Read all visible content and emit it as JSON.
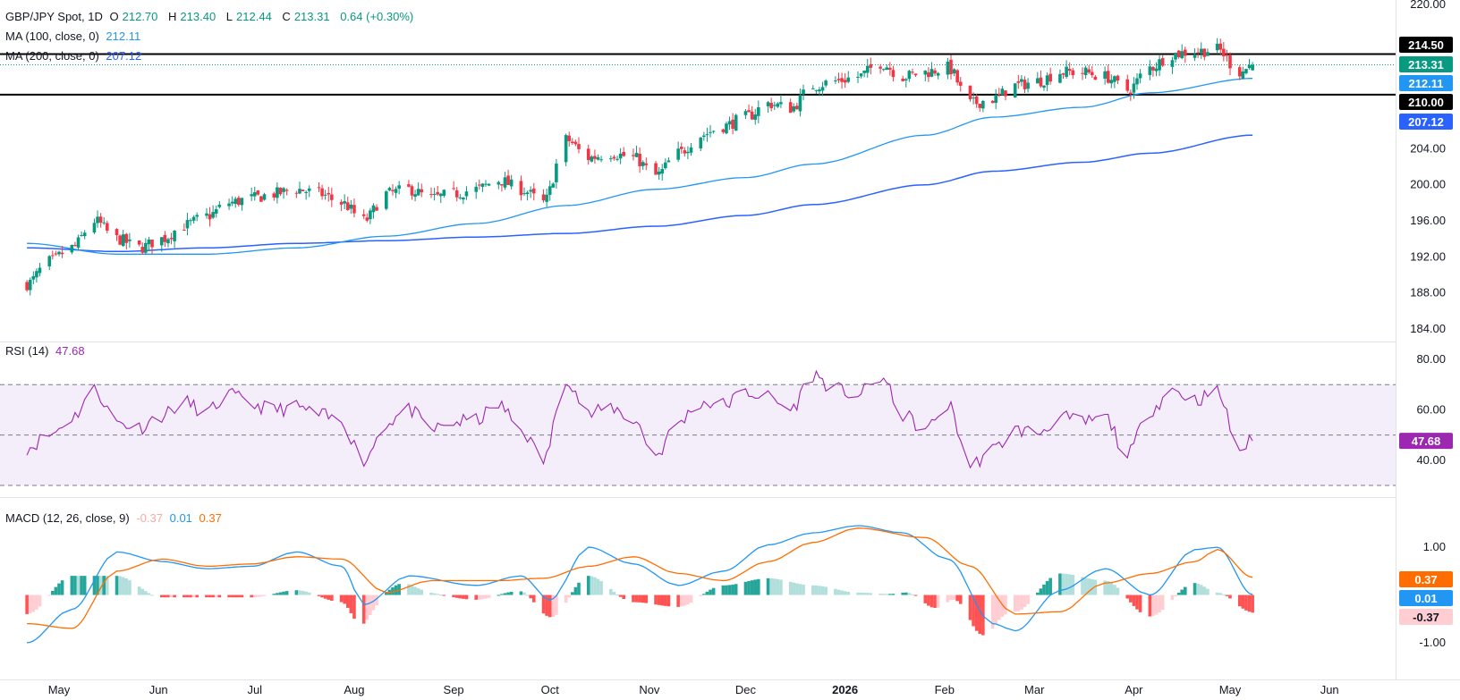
{
  "header": {
    "symbol": "GBP/JPY Spot, 1D",
    "open_label": "O",
    "open": "212.70",
    "high_label": "H",
    "high": "213.40",
    "low_label": "L",
    "low": "212.44",
    "close_label": "C",
    "close": "213.31",
    "change": "0.64 (+0.30%)"
  },
  "indicators": {
    "ma100_label": "MA (100, close, 0)",
    "ma100_value": "212.11",
    "ma200_label": "MA (200, close, 0)",
    "ma200_value": "207.12",
    "rsi_label": "RSI (14)",
    "rsi_value": "47.68",
    "macd_label": "MACD (12, 26, close, 9)",
    "macd_hist_value": "-0.37",
    "macd_line_value": "0.01",
    "macd_signal_value": "0.37"
  },
  "colors": {
    "up": "#089981",
    "down": "#f23645",
    "ma100": "#2196f3",
    "ma200": "#2962ff",
    "rsi": "#9c27b0",
    "rsi_band": "#f3eefa",
    "macd": "#2196f3",
    "signal": "#ff6d00",
    "hist_up_strong": "#26a69a",
    "hist_up_weak": "#b2dfdb",
    "hist_down_strong": "#ff5252",
    "hist_down_weak": "#ffcdd2"
  },
  "chart_data": [
    {
      "type": "candlestick",
      "title": "GBP/JPY Spot, 1D",
      "x_labels": [
        "May",
        "Jun",
        "Jul",
        "Aug",
        "Sep",
        "Oct",
        "Nov",
        "Dec",
        "2026",
        "Feb",
        "Mar",
        "Apr",
        "May",
        "Jun"
      ],
      "y_ticks": [
        "220.00",
        "204.00",
        "200.00",
        "196.00",
        "192.00",
        "188.00",
        "184.00"
      ],
      "ylim": [
        184,
        220
      ],
      "horizontal_levels": [
        214.5,
        210.0
      ],
      "last_price": 213.31,
      "price_badges": [
        {
          "label": "214.50",
          "value": 214.5,
          "kind": "level"
        },
        {
          "label": "213.31",
          "value": 213.31,
          "kind": "last"
        },
        {
          "label": "212.11",
          "value": 212.11,
          "kind": "ma100"
        },
        {
          "label": "210.00",
          "value": 210.0,
          "kind": "level"
        },
        {
          "label": "207.12",
          "value": 207.12,
          "kind": "ma200"
        }
      ],
      "close_anchors": [
        [
          "2025-04-21",
          189.0
        ],
        [
          "2025-04-28",
          191.5
        ],
        [
          "2025-05-05",
          193.0
        ],
        [
          "2025-05-12",
          196.0
        ],
        [
          "2025-05-19",
          194.0
        ],
        [
          "2025-05-26",
          193.0
        ],
        [
          "2025-06-02",
          194.0
        ],
        [
          "2025-06-09",
          195.5
        ],
        [
          "2025-06-16",
          196.5
        ],
        [
          "2025-06-23",
          198.0
        ],
        [
          "2025-06-30",
          198.5
        ],
        [
          "2025-07-07",
          199.0
        ],
        [
          "2025-07-14",
          199.5
        ],
        [
          "2025-07-21",
          199.0
        ],
        [
          "2025-07-28",
          198.0
        ],
        [
          "2025-08-04",
          196.0
        ],
        [
          "2025-08-11",
          199.0
        ],
        [
          "2025-08-18",
          199.5
        ],
        [
          "2025-08-25",
          198.5
        ],
        [
          "2025-09-01",
          199.0
        ],
        [
          "2025-09-08",
          199.5
        ],
        [
          "2025-09-15",
          200.5
        ],
        [
          "2025-09-22",
          199.5
        ],
        [
          "2025-09-29",
          198.0
        ],
        [
          "2025-10-06",
          205.0
        ],
        [
          "2025-10-13",
          203.0
        ],
        [
          "2025-10-20",
          203.5
        ],
        [
          "2025-10-27",
          203.0
        ],
        [
          "2025-11-03",
          201.0
        ],
        [
          "2025-11-10",
          203.5
        ],
        [
          "2025-11-17",
          205.5
        ],
        [
          "2025-11-24",
          206.5
        ],
        [
          "2025-12-01",
          207.5
        ],
        [
          "2025-12-08",
          209.0
        ],
        [
          "2025-12-15",
          208.5
        ],
        [
          "2025-12-22",
          211.0
        ],
        [
          "2025-12-29",
          211.5
        ],
        [
          "2026-01-05",
          212.0
        ],
        [
          "2026-01-12",
          213.5
        ],
        [
          "2026-01-19",
          212.0
        ],
        [
          "2026-01-26",
          212.5
        ],
        [
          "2026-02-02",
          213.0
        ],
        [
          "2026-02-09",
          209.0
        ],
        [
          "2026-02-16",
          209.5
        ],
        [
          "2026-02-23",
          211.0
        ],
        [
          "2026-03-02",
          211.5
        ],
        [
          "2026-03-09",
          212.5
        ],
        [
          "2026-03-16",
          212.5
        ],
        [
          "2026-03-23",
          212.0
        ],
        [
          "2026-03-30",
          210.5
        ],
        [
          "2026-04-06",
          213.0
        ],
        [
          "2026-04-13",
          214.5
        ],
        [
          "2026-04-20",
          214.8
        ],
        [
          "2026-04-27",
          215.0
        ],
        [
          "2026-05-04",
          212.5
        ],
        [
          "2026-05-08",
          213.31
        ]
      ],
      "ma100_anchors": [
        [
          "2025-04-21",
          193.5
        ],
        [
          "2025-05-19",
          192.3
        ],
        [
          "2025-06-16",
          192.3
        ],
        [
          "2025-07-14",
          193.0
        ],
        [
          "2025-08-11",
          194.3
        ],
        [
          "2025-09-08",
          195.7
        ],
        [
          "2025-10-06",
          197.7
        ],
        [
          "2025-11-03",
          199.5
        ],
        [
          "2025-12-01",
          200.8
        ],
        [
          "2025-12-22",
          202.3
        ],
        [
          "2026-01-26",
          205.5
        ],
        [
          "2026-02-16",
          207.5
        ],
        [
          "2026-03-16",
          208.6
        ],
        [
          "2026-04-06",
          210.2
        ],
        [
          "2026-05-08",
          211.8
        ]
      ],
      "ma200_anchors": [
        [
          "2025-04-21",
          193.0
        ],
        [
          "2025-05-19",
          192.6
        ],
        [
          "2025-06-16",
          193.0
        ],
        [
          "2025-07-14",
          193.5
        ],
        [
          "2025-08-11",
          193.8
        ],
        [
          "2025-09-08",
          194.2
        ],
        [
          "2025-10-06",
          194.6
        ],
        [
          "2025-11-03",
          195.4
        ],
        [
          "2025-12-01",
          196.6
        ],
        [
          "2025-12-22",
          197.8
        ],
        [
          "2026-01-26",
          200.0
        ],
        [
          "2026-02-16",
          201.5
        ],
        [
          "2026-03-16",
          202.5
        ],
        [
          "2026-04-06",
          203.5
        ],
        [
          "2026-05-08",
          205.5
        ]
      ]
    },
    {
      "type": "line",
      "title": "RSI (14)",
      "y_ticks": [
        "80.00",
        "60.00",
        "40.00"
      ],
      "ylim": [
        30,
        80
      ],
      "levels": [
        70,
        50,
        30
      ],
      "last_value": 47.68,
      "anchors": [
        [
          "2025-04-21",
          45
        ],
        [
          "2025-04-28",
          50
        ],
        [
          "2025-05-05",
          57
        ],
        [
          "2025-05-12",
          68
        ],
        [
          "2025-05-19",
          55
        ],
        [
          "2025-05-26",
          53
        ],
        [
          "2025-06-02",
          58
        ],
        [
          "2025-06-09",
          63
        ],
        [
          "2025-06-16",
          59
        ],
        [
          "2025-06-23",
          66
        ],
        [
          "2025-06-30",
          62
        ],
        [
          "2025-07-07",
          60
        ],
        [
          "2025-07-14",
          61
        ],
        [
          "2025-07-21",
          58
        ],
        [
          "2025-07-28",
          55
        ],
        [
          "2025-08-04",
          40
        ],
        [
          "2025-08-11",
          55
        ],
        [
          "2025-08-18",
          60
        ],
        [
          "2025-08-25",
          52
        ],
        [
          "2025-09-01",
          55
        ],
        [
          "2025-09-08",
          56
        ],
        [
          "2025-09-15",
          62
        ],
        [
          "2025-09-22",
          52
        ],
        [
          "2025-09-29",
          40
        ],
        [
          "2025-10-06",
          73
        ],
        [
          "2025-10-13",
          58
        ],
        [
          "2025-10-20",
          61
        ],
        [
          "2025-10-27",
          56
        ],
        [
          "2025-11-03",
          42
        ],
        [
          "2025-11-10",
          55
        ],
        [
          "2025-11-17",
          63
        ],
        [
          "2025-11-24",
          62
        ],
        [
          "2025-12-01",
          67
        ],
        [
          "2025-12-08",
          65
        ],
        [
          "2025-12-15",
          60
        ],
        [
          "2025-12-22",
          74
        ],
        [
          "2025-12-29",
          68
        ],
        [
          "2026-01-05",
          66
        ],
        [
          "2026-01-12",
          73
        ],
        [
          "2026-01-19",
          58
        ],
        [
          "2026-01-26",
          52
        ],
        [
          "2026-02-02",
          62
        ],
        [
          "2026-02-09",
          38
        ],
        [
          "2026-02-16",
          44
        ],
        [
          "2026-02-23",
          52
        ],
        [
          "2026-03-02",
          51
        ],
        [
          "2026-03-09",
          57
        ],
        [
          "2026-03-16",
          55
        ],
        [
          "2026-03-23",
          57
        ],
        [
          "2026-03-30",
          42
        ],
        [
          "2026-04-06",
          60
        ],
        [
          "2026-04-13",
          68
        ],
        [
          "2026-04-20",
          64
        ],
        [
          "2026-04-27",
          67
        ],
        [
          "2026-05-04",
          44
        ],
        [
          "2026-05-08",
          47.68
        ]
      ]
    },
    {
      "type": "line",
      "title": "MACD (12, 26, close, 9)",
      "y_ticks": [
        "1.00",
        "-1.00"
      ],
      "ylim": [
        -1.3,
        1.6
      ],
      "last_values": {
        "histogram": -0.37,
        "macd": 0.01,
        "signal": 0.37
      },
      "macd_anchors": [
        [
          "2025-04-21",
          -1.0
        ],
        [
          "2025-05-05",
          -0.3
        ],
        [
          "2025-05-19",
          0.9
        ],
        [
          "2025-06-02",
          0.7
        ],
        [
          "2025-06-16",
          0.55
        ],
        [
          "2025-06-30",
          0.6
        ],
        [
          "2025-07-14",
          0.9
        ],
        [
          "2025-07-28",
          0.6
        ],
        [
          "2025-08-04",
          -0.2
        ],
        [
          "2025-08-18",
          0.4
        ],
        [
          "2025-09-08",
          0.2
        ],
        [
          "2025-09-22",
          0.4
        ],
        [
          "2025-10-01",
          -0.1
        ],
        [
          "2025-10-13",
          1.0
        ],
        [
          "2025-10-27",
          0.65
        ],
        [
          "2025-11-10",
          0.2
        ],
        [
          "2025-11-24",
          0.5
        ],
        [
          "2025-12-08",
          1.05
        ],
        [
          "2025-12-22",
          1.3
        ],
        [
          "2026-01-05",
          1.45
        ],
        [
          "2026-01-19",
          1.3
        ],
        [
          "2026-02-02",
          0.75
        ],
        [
          "2026-02-16",
          -0.6
        ],
        [
          "2026-02-23",
          -0.75
        ],
        [
          "2026-03-09",
          0.1
        ],
        [
          "2026-03-23",
          0.55
        ],
        [
          "2026-04-06",
          0.0
        ],
        [
          "2026-04-20",
          0.95
        ],
        [
          "2026-04-27",
          1.0
        ],
        [
          "2026-05-08",
          0.01
        ]
      ],
      "signal_anchors": [
        [
          "2025-04-21",
          -0.6
        ],
        [
          "2025-05-05",
          -0.7
        ],
        [
          "2025-05-19",
          0.5
        ],
        [
          "2025-06-02",
          0.75
        ],
        [
          "2025-06-16",
          0.6
        ],
        [
          "2025-06-30",
          0.65
        ],
        [
          "2025-07-14",
          0.8
        ],
        [
          "2025-07-28",
          0.75
        ],
        [
          "2025-08-11",
          0.05
        ],
        [
          "2025-08-25",
          0.3
        ],
        [
          "2025-09-15",
          0.3
        ],
        [
          "2025-09-29",
          0.35
        ],
        [
          "2025-10-13",
          0.6
        ],
        [
          "2025-10-27",
          0.8
        ],
        [
          "2025-11-10",
          0.45
        ],
        [
          "2025-11-24",
          0.3
        ],
        [
          "2025-12-08",
          0.7
        ],
        [
          "2025-12-22",
          1.1
        ],
        [
          "2026-01-05",
          1.4
        ],
        [
          "2026-01-26",
          1.2
        ],
        [
          "2026-02-09",
          0.6
        ],
        [
          "2026-02-23",
          -0.4
        ],
        [
          "2026-03-09",
          -0.35
        ],
        [
          "2026-03-23",
          0.25
        ],
        [
          "2026-04-06",
          0.45
        ],
        [
          "2026-04-20",
          0.7
        ],
        [
          "2026-04-27",
          0.95
        ],
        [
          "2026-05-08",
          0.37
        ]
      ]
    }
  ]
}
